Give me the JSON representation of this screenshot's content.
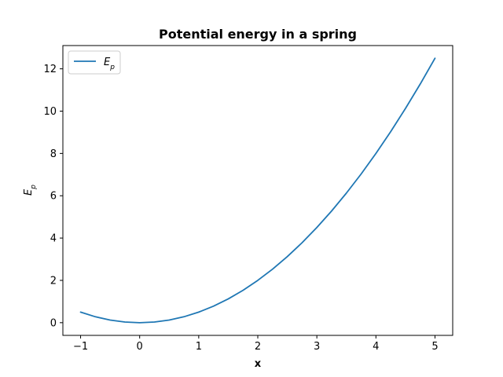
{
  "chart_data": {
    "type": "line",
    "title": "Potential energy in a spring",
    "xlabel": "x",
    "ylabel": "Ep",
    "ylabel_sub": "p",
    "xlim": [
      -1.3,
      5.3
    ],
    "ylim": [
      -0.6,
      13.1
    ],
    "x_ticks": [
      -1,
      0,
      1,
      2,
      3,
      4,
      5
    ],
    "x_tick_labels": [
      "−1",
      "0",
      "1",
      "2",
      "3",
      "4",
      "5"
    ],
    "y_ticks": [
      0,
      2,
      4,
      6,
      8,
      10,
      12
    ],
    "y_tick_labels": [
      "0",
      "2",
      "4",
      "6",
      "8",
      "10",
      "12"
    ],
    "grid": false,
    "legend": {
      "position": "top-left",
      "entries": [
        "Ep"
      ]
    },
    "series": [
      {
        "name": "Ep",
        "name_main": "E",
        "name_sub": "p",
        "color": "#1f77b4",
        "x": [
          -1,
          -0.75,
          -0.5,
          -0.25,
          0,
          0.25,
          0.5,
          0.75,
          1,
          1.25,
          1.5,
          1.75,
          2,
          2.25,
          2.5,
          2.75,
          3,
          3.25,
          3.5,
          3.75,
          4,
          4.25,
          4.5,
          4.75,
          5
        ],
        "y": [
          0.5,
          0.28,
          0.125,
          0.031,
          0,
          0.031,
          0.125,
          0.28,
          0.5,
          0.78,
          1.125,
          1.53,
          2.0,
          2.53,
          3.125,
          3.78,
          4.5,
          5.28,
          6.125,
          7.03,
          8.0,
          9.03,
          10.125,
          11.28,
          12.5
        ]
      }
    ]
  }
}
